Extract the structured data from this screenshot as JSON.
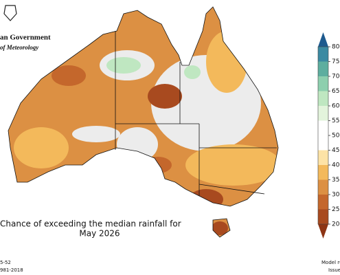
{
  "header": {
    "org_lines": [
      "an Government",
      "of Meteorology"
    ]
  },
  "title_lines": [
    "Chance of exceeding the median rainfall for",
    "May 2026"
  ],
  "footer": {
    "left": [
      "5-52",
      "981-2018"
    ],
    "right": [
      "Model ru",
      "Issue"
    ]
  },
  "legend": {
    "ticks": [
      20,
      25,
      30,
      35,
      40,
      45,
      50,
      55,
      60,
      65,
      70,
      75,
      80
    ],
    "colors": [
      "#a84a1f",
      "#c4672c",
      "#dc9043",
      "#f3b95b",
      "#fde3a6",
      "#ffffff",
      "#ffffff",
      "#e3f4dc",
      "#bfe7c1",
      "#8dcfae",
      "#5dae9f",
      "#3b8aa2"
    ],
    "under_color": "#8d3515",
    "over_color": "#1e5a8e"
  }
}
